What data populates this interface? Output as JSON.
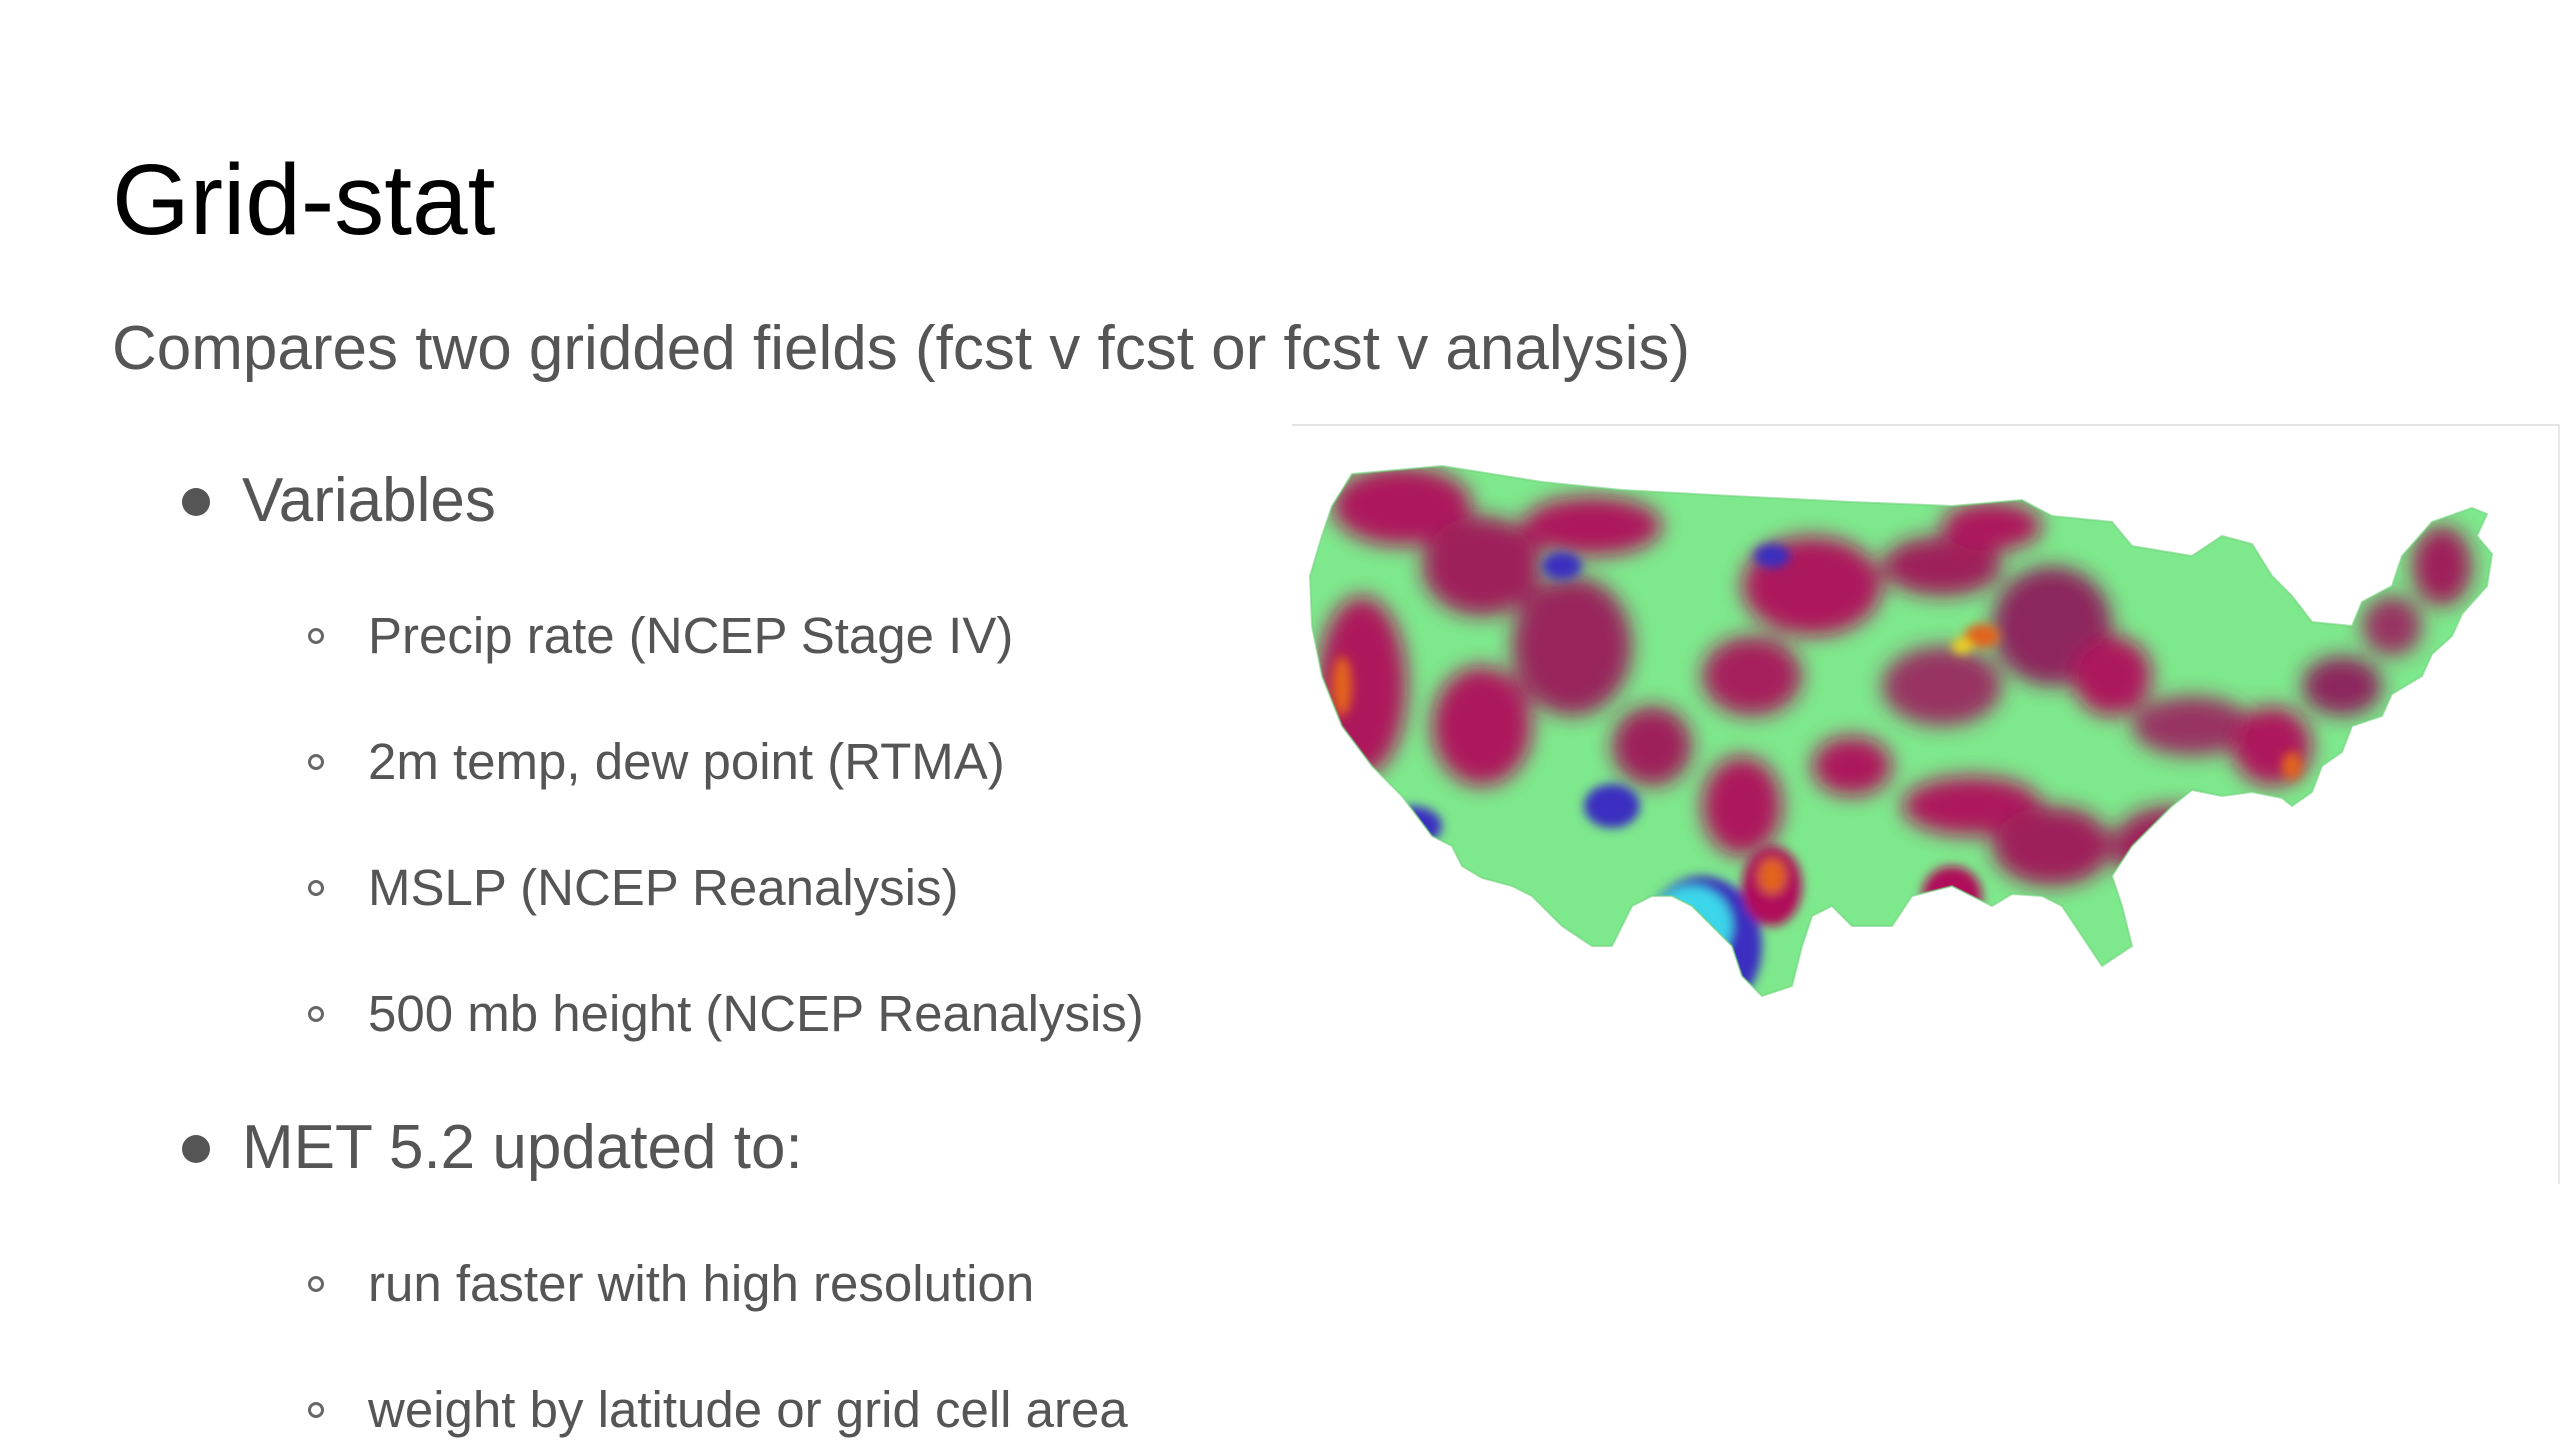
{
  "slide": {
    "title": "Grid-stat",
    "subtitle": "Compares two gridded fields (fcst v fcst or fcst v analysis)",
    "bullets": [
      {
        "label": "Variables",
        "subitems": [
          "Precip rate (NCEP Stage IV)",
          "2m temp, dew point (RTMA)",
          "MSLP (NCEP Reanalysis)",
          "500 mb height (NCEP Reanalysis)"
        ]
      },
      {
        "label": "MET 5.2 updated to:",
        "subitems": [
          "run faster with high resolution",
          "weight by latitude or grid cell area"
        ]
      }
    ]
  },
  "map": {
    "description_icon": "conus-gridded-field-map",
    "colors": {
      "base_green": "#7ee88c",
      "magenta": "#b0105a",
      "blue": "#3a2fc0",
      "cyan": "#3ad6ea",
      "yellow": "#f2d21a",
      "orange": "#e2641a"
    }
  },
  "theme": {
    "title_color": "#000000",
    "text_color": "#555555",
    "background": "#ffffff"
  }
}
